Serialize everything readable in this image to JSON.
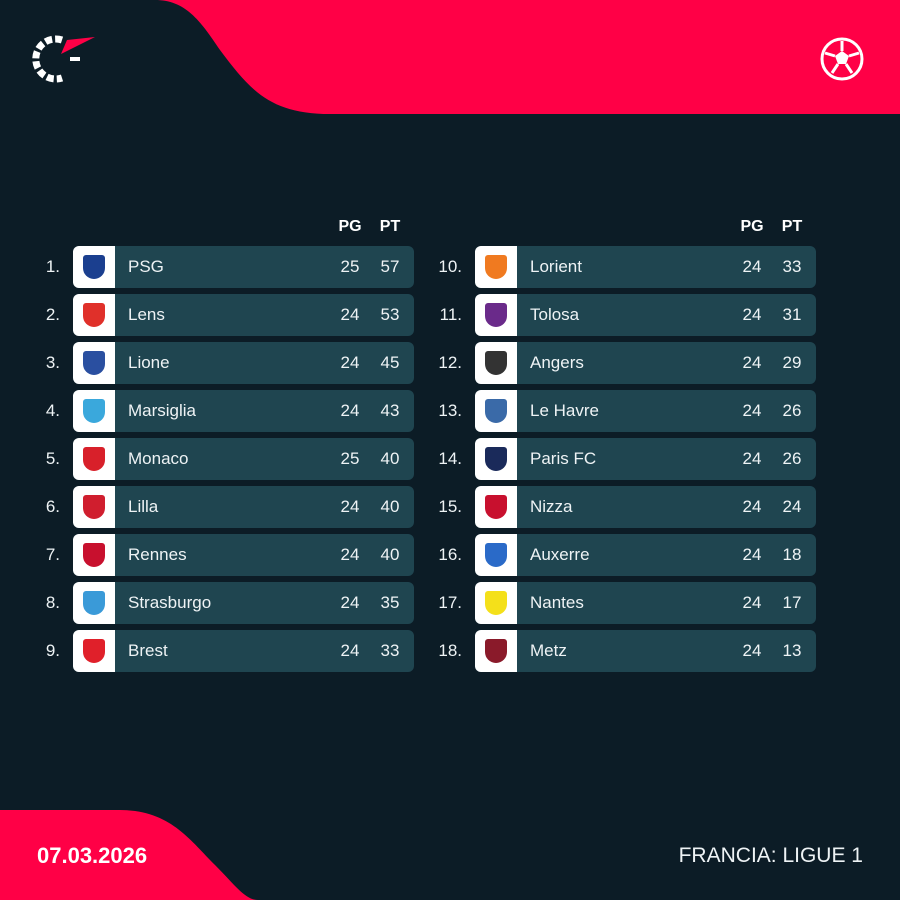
{
  "colors": {
    "background": "#0c1c26",
    "accent": "#ff0046",
    "row": "#1f4550"
  },
  "brand_logo": "flashscore-logo",
  "sport_icon": "football-icon",
  "columns": {
    "played": "PG",
    "points": "PT"
  },
  "standings": [
    {
      "rank": "1.",
      "team": "PSG",
      "pg": "25",
      "pt": "57",
      "crest": "#1b3f8f"
    },
    {
      "rank": "2.",
      "team": "Lens",
      "pg": "24",
      "pt": "53",
      "crest": "#e0302a"
    },
    {
      "rank": "3.",
      "team": "Lione",
      "pg": "24",
      "pt": "45",
      "crest": "#2a4fa0"
    },
    {
      "rank": "4.",
      "team": "Marsiglia",
      "pg": "24",
      "pt": "43",
      "crest": "#3aa8dc"
    },
    {
      "rank": "5.",
      "team": "Monaco",
      "pg": "25",
      "pt": "40",
      "crest": "#d8202a"
    },
    {
      "rank": "6.",
      "team": "Lilla",
      "pg": "24",
      "pt": "40",
      "crest": "#d01e2e"
    },
    {
      "rank": "7.",
      "team": "Rennes",
      "pg": "24",
      "pt": "40",
      "crest": "#c8102e"
    },
    {
      "rank": "8.",
      "team": "Strasburgo",
      "pg": "24",
      "pt": "35",
      "crest": "#3a9ad8"
    },
    {
      "rank": "9.",
      "team": "Brest",
      "pg": "24",
      "pt": "33",
      "crest": "#e0202a"
    },
    {
      "rank": "10.",
      "team": "Lorient",
      "pg": "24",
      "pt": "33",
      "crest": "#f07a20"
    },
    {
      "rank": "11.",
      "team": "Tolosa",
      "pg": "24",
      "pt": "31",
      "crest": "#6a2a8a"
    },
    {
      "rank": "12.",
      "team": "Angers",
      "pg": "24",
      "pt": "29",
      "crest": "#333333"
    },
    {
      "rank": "13.",
      "team": "Le Havre",
      "pg": "24",
      "pt": "26",
      "crest": "#3a6aa8"
    },
    {
      "rank": "14.",
      "team": "Paris FC",
      "pg": "24",
      "pt": "26",
      "crest": "#1a2a5a"
    },
    {
      "rank": "15.",
      "team": "Nizza",
      "pg": "24",
      "pt": "24",
      "crest": "#c8102e"
    },
    {
      "rank": "16.",
      "team": "Auxerre",
      "pg": "24",
      "pt": "18",
      "crest": "#2a6ac8"
    },
    {
      "rank": "17.",
      "team": "Nantes",
      "pg": "24",
      "pt": "17",
      "crest": "#f4e01a"
    },
    {
      "rank": "18.",
      "team": "Metz",
      "pg": "24",
      "pt": "13",
      "crest": "#8a1a2a"
    }
  ],
  "footer": {
    "date": "07.03.2026",
    "league": "FRANCIA: LIGUE 1"
  }
}
